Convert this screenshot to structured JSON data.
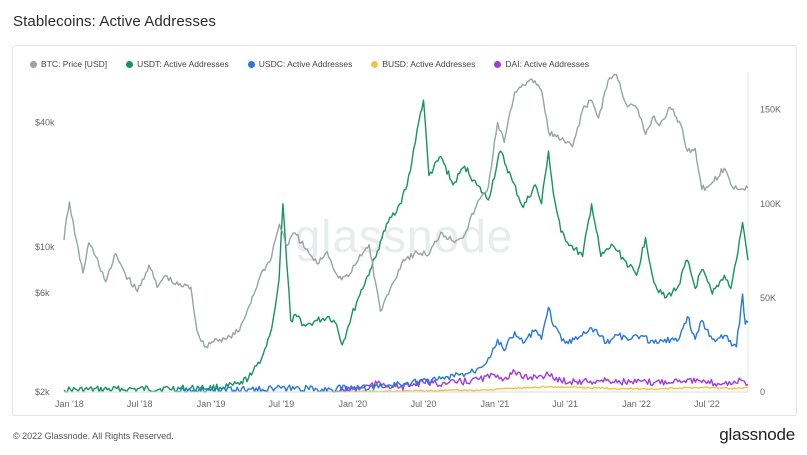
{
  "title": "Stablecoins: Active Addresses",
  "watermark": "glassnode",
  "footer": {
    "copyright": "© 2022 Glassnode. All Rights Reserved.",
    "logo": "glassnode"
  },
  "colors": {
    "btc": "#98a3a5",
    "usdt": "#15955a",
    "usdc": "#2878d8",
    "busd": "#f3c24c",
    "dai": "#a23bd8",
    "grid": "#e8ecec",
    "axis_text": "#666666"
  },
  "legend": [
    {
      "name": "BTC: Price [USD]",
      "color": "#98a3a5"
    },
    {
      "name": "USDT: Active Addresses",
      "color": "#15955a"
    },
    {
      "name": "USDC: Active Addresses",
      "color": "#2878d8"
    },
    {
      "name": "BUSD: Active Addresses",
      "color": "#f3c24c"
    },
    {
      "name": "DAI: Active Addresses",
      "color": "#a23bd8"
    }
  ],
  "chart_data": {
    "type": "line",
    "title": "Stablecoins: Active Addresses",
    "x_range": [
      "2017-12-18",
      "2022-10-15"
    ],
    "x_ticks": [
      {
        "date": "2018-01-01",
        "label": "Jan '18"
      },
      {
        "date": "2018-07-01",
        "label": "Jul '18"
      },
      {
        "date": "2019-01-01",
        "label": "Jan '19"
      },
      {
        "date": "2019-07-01",
        "label": "Jul '19"
      },
      {
        "date": "2020-01-01",
        "label": "Jan '20"
      },
      {
        "date": "2020-07-01",
        "label": "Jul '20"
      },
      {
        "date": "2021-01-01",
        "label": "Jan '21"
      },
      {
        "date": "2021-07-01",
        "label": "Jul '21"
      },
      {
        "date": "2022-01-01",
        "label": "Jan '22"
      },
      {
        "date": "2022-07-01",
        "label": "Jul '22"
      }
    ],
    "y_left": {
      "scale": "log",
      "range": [
        2000,
        70000
      ],
      "ticks": [
        {
          "v": 2000,
          "label": "$2k"
        },
        {
          "v": 6000,
          "label": "$6k"
        },
        {
          "v": 10000,
          "label": "$10k"
        },
        {
          "v": 40000,
          "label": "$40k"
        }
      ]
    },
    "y_right": {
      "scale": "linear",
      "range": [
        0,
        170000
      ],
      "ticks": [
        {
          "v": 0,
          "label": "0"
        },
        {
          "v": 50000,
          "label": "50K"
        },
        {
          "v": 100000,
          "label": "100K"
        },
        {
          "v": 150000,
          "label": "150K"
        }
      ]
    },
    "series": [
      {
        "name": "BTC: Price [USD]",
        "axis": "left",
        "points": [
          [
            "2017-12-18",
            10800
          ],
          [
            "2017-12-25",
            14000
          ],
          [
            "2018-01-01",
            16500
          ],
          [
            "2018-01-15",
            11500
          ],
          [
            "2018-02-05",
            7500
          ],
          [
            "2018-02-20",
            10500
          ],
          [
            "2018-03-10",
            9000
          ],
          [
            "2018-04-05",
            6800
          ],
          [
            "2018-05-01",
            9300
          ],
          [
            "2018-05-25",
            7400
          ],
          [
            "2018-06-25",
            6100
          ],
          [
            "2018-07-25",
            8200
          ],
          [
            "2018-08-15",
            6400
          ],
          [
            "2018-09-05",
            7300
          ],
          [
            "2018-10-01",
            6600
          ],
          [
            "2018-11-10",
            6400
          ],
          [
            "2018-11-25",
            4000
          ],
          [
            "2018-12-15",
            3300
          ],
          [
            "2019-01-15",
            3600
          ],
          [
            "2019-02-10",
            3600
          ],
          [
            "2019-03-15",
            3950
          ],
          [
            "2019-04-05",
            5000
          ],
          [
            "2019-05-15",
            7800
          ],
          [
            "2019-06-01",
            8500
          ],
          [
            "2019-06-26",
            12900
          ],
          [
            "2019-07-15",
            10200
          ],
          [
            "2019-08-05",
            11700
          ],
          [
            "2019-09-01",
            9800
          ],
          [
            "2019-10-01",
            8300
          ],
          [
            "2019-10-27",
            9500
          ],
          [
            "2019-11-25",
            7100
          ],
          [
            "2019-12-20",
            7200
          ],
          [
            "2020-01-15",
            8700
          ],
          [
            "2020-02-12",
            10300
          ],
          [
            "2020-03-12",
            4900
          ],
          [
            "2020-04-15",
            6800
          ],
          [
            "2020-05-10",
            8700
          ],
          [
            "2020-06-15",
            9400
          ],
          [
            "2020-07-15",
            9200
          ],
          [
            "2020-08-15",
            11800
          ],
          [
            "2020-09-15",
            10700
          ],
          [
            "2020-10-15",
            11500
          ],
          [
            "2020-11-15",
            16000
          ],
          [
            "2020-12-15",
            19500
          ],
          [
            "2021-01-08",
            40000
          ],
          [
            "2021-01-25",
            32000
          ],
          [
            "2021-02-21",
            56000
          ],
          [
            "2021-03-13",
            61000
          ],
          [
            "2021-04-14",
            63500
          ],
          [
            "2021-05-01",
            57000
          ],
          [
            "2021-05-19",
            36000
          ],
          [
            "2021-06-20",
            33000
          ],
          [
            "2021-07-20",
            30500
          ],
          [
            "2021-08-15",
            46000
          ],
          [
            "2021-09-07",
            51000
          ],
          [
            "2021-09-25",
            42000
          ],
          [
            "2021-10-20",
            64000
          ],
          [
            "2021-11-10",
            68000
          ],
          [
            "2021-12-05",
            49000
          ],
          [
            "2022-01-01",
            47000
          ],
          [
            "2022-01-24",
            35000
          ],
          [
            "2022-02-15",
            43000
          ],
          [
            "2022-03-01",
            38500
          ],
          [
            "2022-03-28",
            47300
          ],
          [
            "2022-04-25",
            39000
          ],
          [
            "2022-05-12",
            29000
          ],
          [
            "2022-06-01",
            30000
          ],
          [
            "2022-06-18",
            19000
          ],
          [
            "2022-07-15",
            20500
          ],
          [
            "2022-08-15",
            24000
          ],
          [
            "2022-09-01",
            20000
          ],
          [
            "2022-09-25",
            19000
          ],
          [
            "2022-10-15",
            19300
          ]
        ]
      },
      {
        "name": "USDT: Active Addresses",
        "axis": "right",
        "points": [
          [
            "2017-12-18",
            1000
          ],
          [
            "2018-06-01",
            1500
          ],
          [
            "2018-12-01",
            2000
          ],
          [
            "2019-02-01",
            2500
          ],
          [
            "2019-03-15",
            4000
          ],
          [
            "2019-04-15",
            9000
          ],
          [
            "2019-05-15",
            20000
          ],
          [
            "2019-06-01",
            30000
          ],
          [
            "2019-06-15",
            45000
          ],
          [
            "2019-06-25",
            60000
          ],
          [
            "2019-07-05",
            100000
          ],
          [
            "2019-07-15",
            68000
          ],
          [
            "2019-07-25",
            38000
          ],
          [
            "2019-08-10",
            40000
          ],
          [
            "2019-09-01",
            35000
          ],
          [
            "2019-10-01",
            38000
          ],
          [
            "2019-11-01",
            40000
          ],
          [
            "2019-11-20",
            36000
          ],
          [
            "2019-12-05",
            25000
          ],
          [
            "2019-12-20",
            35000
          ],
          [
            "2020-01-15",
            50000
          ],
          [
            "2020-02-15",
            65000
          ],
          [
            "2020-03-01",
            72000
          ],
          [
            "2020-03-12",
            80000
          ],
          [
            "2020-04-01",
            90000
          ],
          [
            "2020-05-01",
            100000
          ],
          [
            "2020-05-20",
            110000
          ],
          [
            "2020-06-01",
            122000
          ],
          [
            "2020-06-15",
            140000
          ],
          [
            "2020-07-01",
            155000
          ],
          [
            "2020-07-15",
            115000
          ],
          [
            "2020-08-15",
            125000
          ],
          [
            "2020-09-15",
            110000
          ],
          [
            "2020-10-15",
            120000
          ],
          [
            "2020-11-15",
            110000
          ],
          [
            "2020-12-15",
            102000
          ],
          [
            "2021-01-15",
            128000
          ],
          [
            "2021-02-15",
            112000
          ],
          [
            "2021-03-15",
            98000
          ],
          [
            "2021-04-15",
            110000
          ],
          [
            "2021-05-01",
            100000
          ],
          [
            "2021-05-19",
            128000
          ],
          [
            "2021-06-01",
            105000
          ],
          [
            "2021-06-20",
            85000
          ],
          [
            "2021-07-15",
            78000
          ],
          [
            "2021-08-15",
            72000
          ],
          [
            "2021-09-07",
            100000
          ],
          [
            "2021-10-01",
            72000
          ],
          [
            "2021-11-01",
            78000
          ],
          [
            "2021-12-01",
            70000
          ],
          [
            "2022-01-01",
            62000
          ],
          [
            "2022-01-24",
            82000
          ],
          [
            "2022-02-15",
            58000
          ],
          [
            "2022-03-15",
            50000
          ],
          [
            "2022-04-15",
            55000
          ],
          [
            "2022-05-12",
            70000
          ],
          [
            "2022-06-01",
            55000
          ],
          [
            "2022-06-18",
            65000
          ],
          [
            "2022-07-15",
            52000
          ],
          [
            "2022-08-15",
            62000
          ],
          [
            "2022-09-01",
            55000
          ],
          [
            "2022-09-15",
            70000
          ],
          [
            "2022-10-01",
            90000
          ],
          [
            "2022-10-15",
            70000
          ]
        ]
      },
      {
        "name": "USDC: Active Addresses",
        "axis": "right",
        "points": [
          [
            "2018-10-01",
            500
          ],
          [
            "2019-03-01",
            1000
          ],
          [
            "2019-07-01",
            2000
          ],
          [
            "2019-10-01",
            1500
          ],
          [
            "2020-01-01",
            2000
          ],
          [
            "2020-03-15",
            3000
          ],
          [
            "2020-06-01",
            5000
          ],
          [
            "2020-08-15",
            7000
          ],
          [
            "2020-10-01",
            9000
          ],
          [
            "2020-11-15",
            12000
          ],
          [
            "2020-12-15",
            18000
          ],
          [
            "2021-01-08",
            28000
          ],
          [
            "2021-01-25",
            22000
          ],
          [
            "2021-02-21",
            32000
          ],
          [
            "2021-03-15",
            26000
          ],
          [
            "2021-04-15",
            33000
          ],
          [
            "2021-05-01",
            28000
          ],
          [
            "2021-05-19",
            45000
          ],
          [
            "2021-06-01",
            35000
          ],
          [
            "2021-07-01",
            26000
          ],
          [
            "2021-08-01",
            28000
          ],
          [
            "2021-09-07",
            34000
          ],
          [
            "2021-10-15",
            26000
          ],
          [
            "2021-11-15",
            30000
          ],
          [
            "2021-12-15",
            28000
          ],
          [
            "2022-01-15",
            30000
          ],
          [
            "2022-02-15",
            26000
          ],
          [
            "2022-03-15",
            28000
          ],
          [
            "2022-04-15",
            27000
          ],
          [
            "2022-05-12",
            40000
          ],
          [
            "2022-06-01",
            28000
          ],
          [
            "2022-06-18",
            38000
          ],
          [
            "2022-07-15",
            28000
          ],
          [
            "2022-08-15",
            30000
          ],
          [
            "2022-09-15",
            24000
          ],
          [
            "2022-10-01",
            52000
          ],
          [
            "2022-10-08",
            36000
          ],
          [
            "2022-10-15",
            37000
          ]
        ]
      },
      {
        "name": "BUSD: Active Addresses",
        "axis": "right",
        "points": [
          [
            "2019-10-01",
            200
          ],
          [
            "2020-03-01",
            400
          ],
          [
            "2020-08-01",
            700
          ],
          [
            "2020-12-01",
            1000
          ],
          [
            "2021-02-01",
            1800
          ],
          [
            "2021-05-19",
            2800
          ],
          [
            "2021-09-01",
            2200
          ],
          [
            "2021-12-01",
            1800
          ],
          [
            "2022-03-01",
            1600
          ],
          [
            "2022-06-18",
            2500
          ],
          [
            "2022-09-01",
            1800
          ],
          [
            "2022-10-15",
            2400
          ]
        ]
      },
      {
        "name": "DAI: Active Addresses",
        "axis": "right",
        "points": [
          [
            "2019-11-20",
            500
          ],
          [
            "2020-01-01",
            1500
          ],
          [
            "2020-03-12",
            4500
          ],
          [
            "2020-05-01",
            2500
          ],
          [
            "2020-07-01",
            5000
          ],
          [
            "2020-09-01",
            4500
          ],
          [
            "2020-11-01",
            6000
          ],
          [
            "2021-01-08",
            9000
          ],
          [
            "2021-01-25",
            7000
          ],
          [
            "2021-02-21",
            11000
          ],
          [
            "2021-03-15",
            7000
          ],
          [
            "2021-04-15",
            8500
          ],
          [
            "2021-05-19",
            9000
          ],
          [
            "2021-06-20",
            6000
          ],
          [
            "2021-08-15",
            5500
          ],
          [
            "2021-10-15",
            6000
          ],
          [
            "2021-12-15",
            5200
          ],
          [
            "2022-02-15",
            5000
          ],
          [
            "2022-05-12",
            6800
          ],
          [
            "2022-06-18",
            5000
          ],
          [
            "2022-08-15",
            4500
          ],
          [
            "2022-10-01",
            6000
          ],
          [
            "2022-10-15",
            4000
          ]
        ]
      }
    ]
  }
}
